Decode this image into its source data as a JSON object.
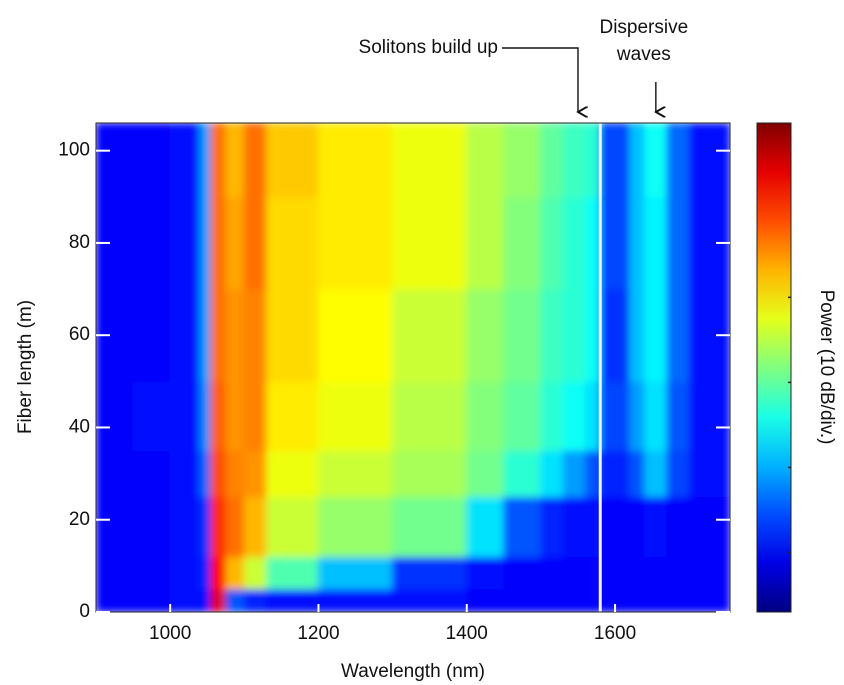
{
  "chart_data": {
    "type": "heatmap",
    "xlabel": "Wavelength (nm)",
    "ylabel": "Fiber length (m)",
    "colorbar_label": "Power (10 dB/div.)",
    "xlim": [
      900,
      1755
    ],
    "xticks": [
      1000,
      1200,
      1400,
      1600
    ],
    "ylim": [
      0,
      106
    ],
    "yticks": [
      0,
      20,
      40,
      60,
      80,
      100
    ],
    "zlim": [
      0,
      57.5
    ],
    "zticks": [
      7,
      17,
      27,
      37
    ],
    "colormap": "jet",
    "x_edges": [
      900,
      950,
      1000,
      1040,
      1055,
      1075,
      1100,
      1130,
      1200,
      1300,
      1400,
      1450,
      1500,
      1530,
      1560,
      1580,
      1620,
      1640,
      1670,
      1700,
      1755
    ],
    "y_edges": [
      0,
      5,
      12,
      25,
      35,
      50,
      70,
      90,
      106
    ],
    "z": [
      [
        7,
        7,
        8,
        8,
        52,
        12,
        9,
        8,
        8,
        8,
        7,
        7,
        7,
        7,
        7,
        7,
        7,
        7,
        7,
        7
      ],
      [
        7,
        7,
        8,
        9,
        50,
        40,
        33,
        26,
        18,
        10,
        8,
        7,
        7,
        7,
        7,
        7,
        7,
        7,
        7,
        7
      ],
      [
        7,
        7,
        8,
        10,
        48,
        44,
        40,
        33,
        30,
        28,
        20,
        12,
        9,
        8,
        8,
        7,
        7,
        8,
        7,
        7
      ],
      [
        7,
        7,
        8,
        13,
        46,
        43,
        42,
        35,
        33,
        31,
        28,
        24,
        20,
        16,
        12,
        9,
        12,
        18,
        11,
        8
      ],
      [
        7,
        8,
        8,
        15,
        45,
        42,
        43,
        37,
        35,
        32,
        29,
        27,
        24,
        22,
        20,
        11,
        16,
        20,
        12,
        8
      ],
      [
        7,
        7,
        8,
        16,
        44,
        42,
        43,
        38,
        36,
        33,
        30,
        28,
        25,
        24,
        22,
        10,
        18,
        21,
        13,
        8
      ],
      [
        7,
        7,
        8,
        16,
        44,
        41,
        44,
        38,
        37,
        35,
        32,
        29,
        26,
        24,
        22,
        11,
        18,
        21,
        13,
        8
      ],
      [
        7,
        7,
        8,
        16,
        44,
        40,
        44,
        39,
        37,
        35,
        32,
        30,
        27,
        25,
        24,
        11,
        18,
        22,
        13,
        8
      ]
    ],
    "annotations": [
      {
        "lines": [
          "Solitons build up"
        ],
        "x": 1550
      },
      {
        "lines": [
          "Dispersive",
          "waves"
        ],
        "x": 1655
      }
    ]
  }
}
